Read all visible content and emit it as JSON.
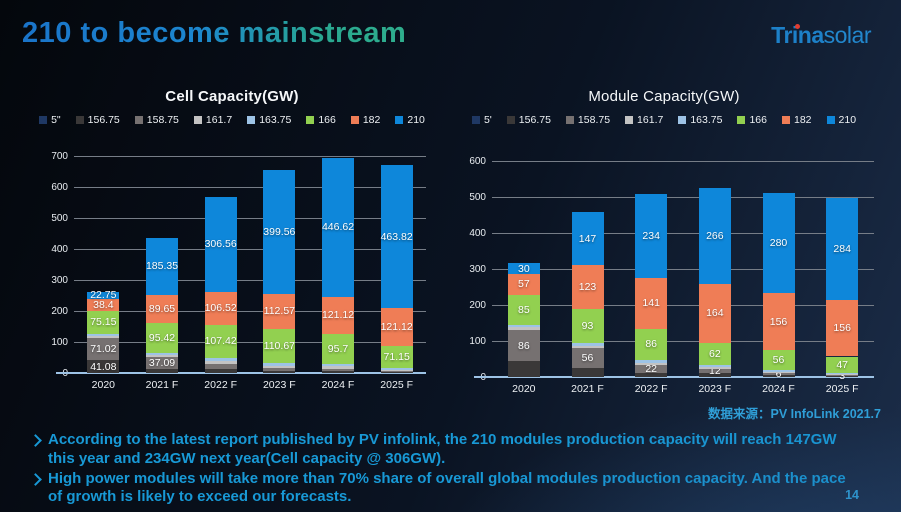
{
  "slide": {
    "title": "210 to become mainstream",
    "logo": {
      "text_bold": "Trina",
      "text_light": "solar",
      "dot_color": "#e03c31"
    },
    "source": "数据来源：PV InfoLink 2021.7",
    "bullets": [
      "According to the latest report published by PV infolink, the 210 modules production capacity will reach 147GW this year and 234GW next year(Cell capacity @ 306GW).",
      "High power modules will take more than 70% share of overall global modules production capacity. And the pace of growth is likely to exceed our forecasts."
    ],
    "bullet_marker": "➢",
    "page_number": "14"
  },
  "colors": {
    "title_gradient_start": "#1a74c9",
    "title_gradient_end": "#2fae8d",
    "bullet_blue": "#1899d6",
    "source_blue": "#2f9fd8",
    "baseline_blue": "#9dc3e6",
    "gridline_gray": "#767d87"
  },
  "chart_data": [
    {
      "type": "bar",
      "stacked": true,
      "title": "Cell Capacity(GW)",
      "categories": [
        "2020",
        "2021 F",
        "2022 F",
        "2023 F",
        "2024 F",
        "2025 F"
      ],
      "ylim": [
        0,
        700
      ],
      "ytick_step": 100,
      "grid": true,
      "legend_position": "top",
      "series": [
        {
          "name": "5\"",
          "color": "#1f3864",
          "values": [
            0,
            0,
            0,
            0,
            0,
            0
          ],
          "labels": [
            "",
            "",
            "",
            "",
            "",
            ""
          ]
        },
        {
          "name": "156.75",
          "color": "#3a3838",
          "values": [
            41.08,
            14,
            12,
            8,
            6,
            3
          ],
          "labels": [
            "41.08",
            "",
            "",
            "",
            "",
            ""
          ]
        },
        {
          "name": "158.75",
          "color": "#767171",
          "values": [
            71.02,
            37.09,
            16,
            8,
            8,
            4
          ],
          "labels": [
            "71.02",
            "37.09",
            "",
            "",
            "",
            ""
          ]
        },
        {
          "name": "161.7",
          "color": "#c3c3c3",
          "values": [
            8,
            8,
            10,
            8,
            8,
            4
          ],
          "labels": [
            "",
            "",
            "",
            "",
            "",
            ""
          ]
        },
        {
          "name": "163.75",
          "color": "#9dc3e6",
          "values": [
            6,
            7,
            10,
            8,
            8,
            5
          ],
          "labels": [
            "",
            "",
            "",
            "",
            "",
            ""
          ]
        },
        {
          "name": "166",
          "color": "#92d050",
          "values": [
            75.15,
            95.42,
            107.42,
            110.67,
            95.7,
            71.15
          ],
          "labels": [
            "75.15",
            "95.42",
            "107.42",
            "110.67",
            "95.7",
            "71.15"
          ]
        },
        {
          "name": "182",
          "color": "#ef7d56",
          "values": [
            38.4,
            89.65,
            106.52,
            112.57,
            121.12,
            121.12
          ],
          "labels": [
            "38.4",
            "89.65",
            "106.52",
            "112.57",
            "121.12",
            "121.12"
          ]
        },
        {
          "name": "210",
          "color": "#0e87da",
          "values": [
            22.75,
            185.35,
            306.56,
            399.56,
            446.62,
            463.82
          ],
          "labels": [
            "22.75",
            "185.35",
            "306.56",
            "399.56",
            "446.62",
            "463.82"
          ]
        }
      ]
    },
    {
      "type": "bar",
      "stacked": true,
      "title": "Module Capacity(GW)",
      "categories": [
        "2020",
        "2021 F",
        "2022 F",
        "2023 F",
        "2024 F",
        "2025 F"
      ],
      "ylim": [
        0,
        600
      ],
      "ytick_step": 100,
      "grid": true,
      "legend_position": "top",
      "series": [
        {
          "name": "5'",
          "color": "#1f3864",
          "values": [
            0,
            0,
            0,
            0,
            0,
            0
          ],
          "labels": [
            "",
            "",
            "",
            "",
            "",
            ""
          ]
        },
        {
          "name": "156.75",
          "color": "#3a3838",
          "values": [
            44,
            25,
            12,
            10,
            5,
            2
          ],
          "labels": [
            "",
            "",
            "",
            "",
            "",
            ""
          ]
        },
        {
          "name": "158.75",
          "color": "#767171",
          "values": [
            86,
            56,
            22,
            12,
            6,
            3
          ],
          "labels": [
            "86",
            "56",
            "22",
            "12",
            "6",
            "3"
          ]
        },
        {
          "name": "161.7",
          "color": "#c3c3c3",
          "values": [
            9,
            6,
            6,
            6,
            3,
            2
          ],
          "labels": [
            "",
            "",
            "",
            "",
            "",
            ""
          ]
        },
        {
          "name": "163.75",
          "color": "#9dc3e6",
          "values": [
            5,
            8,
            8,
            5,
            6,
            3
          ],
          "labels": [
            "",
            "",
            "",
            "",
            "",
            ""
          ]
        },
        {
          "name": "166",
          "color": "#92d050",
          "values": [
            85,
            93,
            86,
            62,
            56,
            47
          ],
          "labels": [
            "85",
            "93",
            "86",
            "62",
            "56",
            "47"
          ]
        },
        {
          "name": "182",
          "color": "#ef7d56",
          "values": [
            57,
            123,
            141,
            164,
            156,
            156
          ],
          "labels": [
            "57",
            "123",
            "141",
            "164",
            "156",
            "156"
          ]
        },
        {
          "name": "210",
          "color": "#0e87da",
          "values": [
            30,
            147,
            234,
            266,
            280,
            284
          ],
          "labels": [
            "30",
            "147",
            "234",
            "266",
            "280",
            "284"
          ]
        }
      ]
    }
  ]
}
